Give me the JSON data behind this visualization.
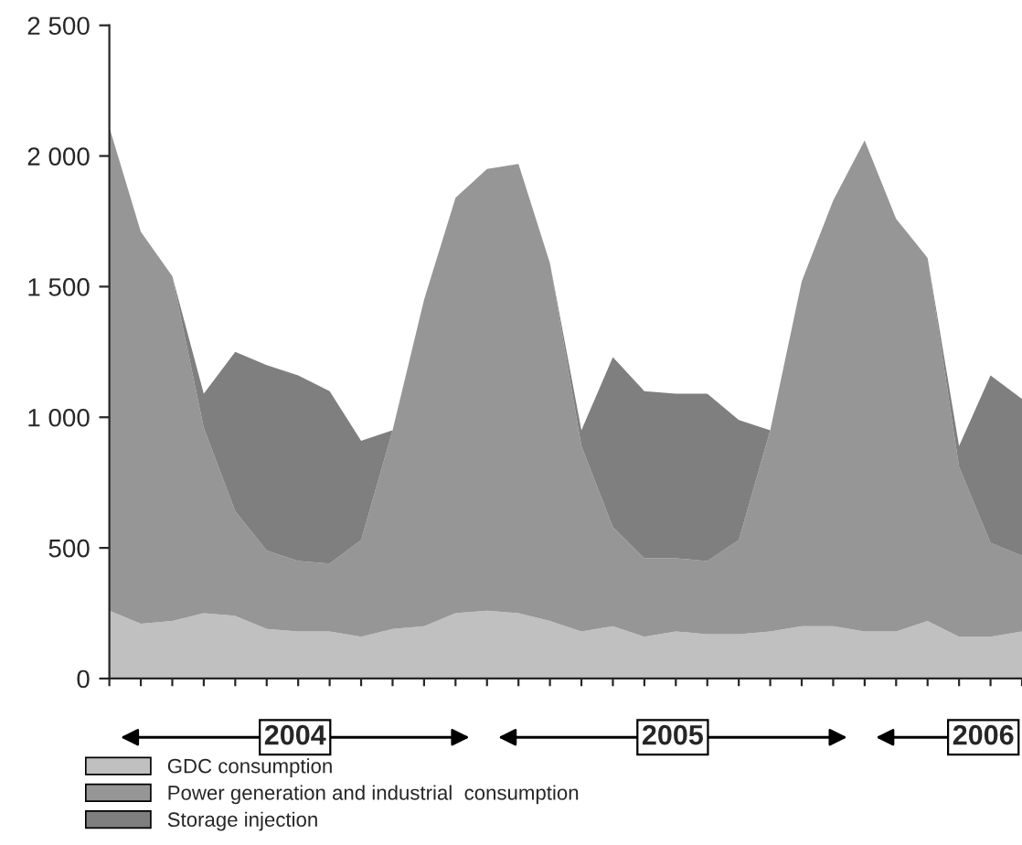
{
  "chart_data": {
    "type": "area",
    "stacked": true,
    "categories": [
      null,
      null,
      null,
      null,
      null,
      null,
      null,
      null,
      null,
      null,
      null,
      null,
      null,
      null,
      null,
      null,
      null,
      null,
      null,
      null,
      null,
      null,
      null,
      null,
      null,
      null,
      null,
      null,
      null,
      null
    ],
    "series": [
      {
        "name": "GDC consumption",
        "color": "#c0c0c0",
        "values": [
          260,
          210,
          220,
          250,
          240,
          190,
          180,
          180,
          160,
          190,
          200,
          250,
          260,
          250,
          220,
          180,
          200,
          160,
          180,
          170,
          170,
          180,
          200,
          200,
          180,
          180,
          220,
          160,
          160,
          180
        ]
      },
      {
        "name": "Power generation and industrial  consumption",
        "color": "#969696",
        "values": [
          1850,
          1500,
          1320,
          710,
          400,
          300,
          270,
          260,
          370,
          760,
          1250,
          1590,
          1690,
          1720,
          1370,
          710,
          380,
          300,
          280,
          280,
          360,
          770,
          1320,
          1630,
          1880,
          1580,
          1390,
          650,
          360,
          290
        ]
      },
      {
        "name": "Storage injection",
        "color": "#7f7f7f",
        "values": [
          0,
          0,
          0,
          130,
          610,
          710,
          710,
          660,
          380,
          0,
          0,
          0,
          0,
          0,
          0,
          60,
          650,
          640,
          630,
          640,
          460,
          0,
          0,
          0,
          0,
          0,
          0,
          80,
          640,
          600
        ]
      }
    ],
    "ylim": [
      0,
      2500
    ],
    "yticks": [
      0,
      500,
      {
        "value": 1000,
        "label": "1 000"
      },
      {
        "value": 1500,
        "label": "1 500"
      },
      {
        "value": 2000,
        "label": "2 000"
      },
      {
        "value": 2500,
        "label": "2 500"
      }
    ],
    "tick_labels": "y",
    "grid": false,
    "legend": "bottom",
    "annotations": [
      "2004",
      "2005",
      "2006"
    ]
  }
}
